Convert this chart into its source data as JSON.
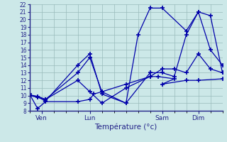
{
  "xlabel": "Température (°c)",
  "background_color": "#cce8e8",
  "grid_color": "#99bbbb",
  "line_color": "#0000aa",
  "ylim": [
    8,
    22
  ],
  "yticks": [
    8,
    9,
    10,
    11,
    12,
    13,
    14,
    15,
    16,
    17,
    18,
    19,
    20,
    21,
    22
  ],
  "xlim": [
    0,
    96
  ],
  "x_tick_positions": [
    6,
    30,
    66,
    84
  ],
  "x_tick_labels": [
    "Ven",
    "Lun",
    "Sam",
    "Dim"
  ],
  "series": [
    {
      "x": [
        0,
        4,
        8,
        24,
        30,
        32,
        36,
        48,
        60,
        64,
        72,
        66,
        78,
        84,
        96
      ],
      "y": [
        10.2,
        8.3,
        9.2,
        9.2,
        9.5,
        10.2,
        10.5,
        11.5,
        12.5,
        12.5,
        12.2,
        11.5,
        12.0,
        12.0,
        12.2
      ]
    },
    {
      "x": [
        0,
        4,
        8,
        24,
        30,
        36,
        48,
        54,
        60,
        66,
        78,
        84,
        90,
        96
      ],
      "y": [
        10.0,
        9.8,
        9.3,
        14.0,
        15.5,
        10.2,
        9.0,
        18.0,
        21.5,
        21.5,
        18.5,
        21.0,
        20.5,
        13.0
      ]
    },
    {
      "x": [
        0,
        4,
        8,
        24,
        30,
        36,
        48,
        60,
        66,
        72,
        78,
        84,
        90,
        96
      ],
      "y": [
        10.1,
        9.9,
        9.5,
        13.0,
        15.0,
        10.5,
        9.0,
        13.0,
        13.0,
        12.5,
        18.0,
        21.0,
        16.0,
        14.0
      ]
    },
    {
      "x": [
        0,
        4,
        8,
        24,
        30,
        36,
        48,
        60,
        66,
        72,
        78,
        84,
        90,
        96
      ],
      "y": [
        10.0,
        9.8,
        9.5,
        12.0,
        10.5,
        9.0,
        11.0,
        12.5,
        13.5,
        13.5,
        13.0,
        15.5,
        13.5,
        13.0
      ]
    }
  ]
}
